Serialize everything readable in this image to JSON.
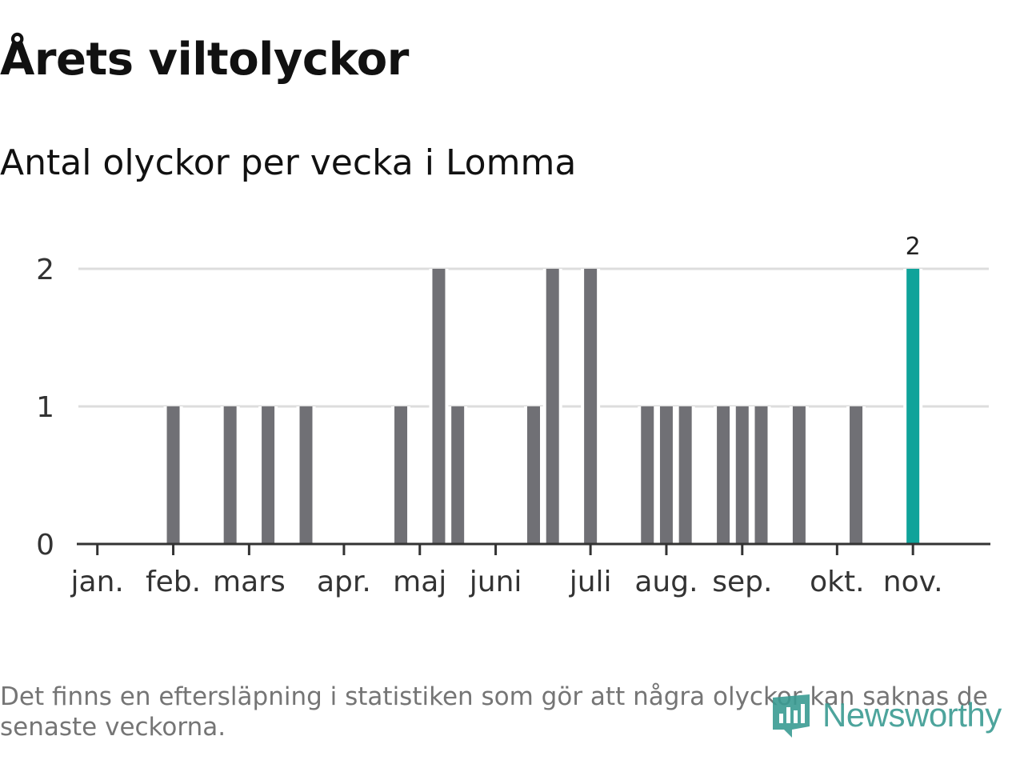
{
  "title": "Årets viltolyckor",
  "subtitle": "Antal olyckor per vecka i Lomma",
  "footnote": "Det finns en eftersläpning i statistiken som gör att några olyckor kan saknas de senaste veckorna.",
  "brand": "Newsworthy",
  "colors": {
    "bar": "#707075",
    "highlight": "#0fa39a",
    "grid": "#dddddd",
    "axis": "#333333",
    "brand": "#3a9b92"
  },
  "chart_data": {
    "type": "bar",
    "title": "Årets viltolyckor",
    "subtitle": "Antal olyckor per vecka i Lomma",
    "xlabel": "",
    "ylabel": "",
    "ylim": [
      0,
      2
    ],
    "y_ticks": [
      0,
      1,
      2
    ],
    "x_range": [
      0,
      48
    ],
    "month_ticks": [
      {
        "label": "jan.",
        "week": 1
      },
      {
        "label": "feb.",
        "week": 5
      },
      {
        "label": "mars",
        "week": 9
      },
      {
        "label": "apr.",
        "week": 14
      },
      {
        "label": "maj",
        "week": 18
      },
      {
        "label": "juni",
        "week": 22
      },
      {
        "label": "juli",
        "week": 27
      },
      {
        "label": "aug.",
        "week": 31
      },
      {
        "label": "sep.",
        "week": 35
      },
      {
        "label": "okt.",
        "week": 40
      },
      {
        "label": "nov.",
        "week": 44
      }
    ],
    "weeks": [
      1,
      2,
      3,
      4,
      5,
      6,
      7,
      8,
      9,
      10,
      11,
      12,
      13,
      14,
      15,
      16,
      17,
      18,
      19,
      20,
      21,
      22,
      23,
      24,
      25,
      26,
      27,
      28,
      29,
      30,
      31,
      32,
      33,
      34,
      35,
      36,
      37,
      38,
      39,
      40,
      41,
      42,
      43,
      44
    ],
    "values": [
      0,
      0,
      0,
      0,
      1,
      0,
      0,
      1,
      0,
      1,
      0,
      1,
      0,
      0,
      0,
      0,
      1,
      0,
      2,
      1,
      0,
      0,
      0,
      1,
      2,
      0,
      2,
      0,
      0,
      1,
      1,
      1,
      0,
      1,
      1,
      1,
      0,
      1,
      0,
      0,
      1,
      0,
      0,
      2
    ],
    "highlight_week": 44,
    "highlight_label": "2"
  }
}
